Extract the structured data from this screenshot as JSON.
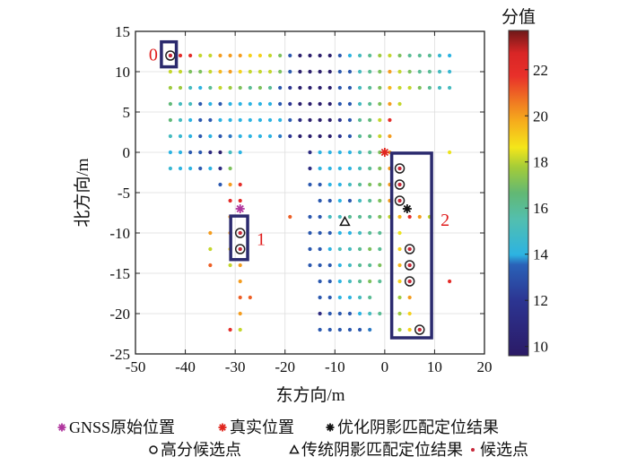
{
  "chart_data": {
    "type": "scatter",
    "xlabel": "东方向/m",
    "ylabel": "北方向/m",
    "xlim": [
      -50,
      20
    ],
    "ylim": [
      -25,
      15
    ],
    "xticks": [
      -50,
      -40,
      -30,
      -20,
      -10,
      0,
      10,
      20
    ],
    "yticks": [
      15,
      10,
      5,
      0,
      -5,
      -10,
      -15,
      -20,
      -25
    ],
    "grid": true,
    "colorbar": {
      "title": "分值",
      "range": [
        9.6,
        23.7
      ],
      "ticks": [
        10,
        12,
        14,
        16,
        18,
        20,
        22
      ],
      "colormap": "jet"
    },
    "candidate_columns_x": [
      -43,
      -41,
      -39,
      -37,
      -35,
      -33,
      -31,
      -29,
      -27,
      -25,
      -23,
      -21,
      -19,
      -17,
      -15,
      -13,
      -11,
      -9,
      -7,
      -5,
      -3,
      -1,
      1,
      3,
      5,
      7,
      9,
      11,
      13
    ],
    "candidate_rows": [
      {
        "y": 12,
        "scores": [
          23,
          22,
          22,
          18,
          18,
          20,
          20,
          20,
          19,
          19,
          18,
          17,
          13,
          10,
          10,
          10,
          10,
          13,
          14,
          15,
          16,
          17.5,
          18,
          17,
          16,
          16,
          16,
          14.5,
          14
        ]
      },
      {
        "y": 10,
        "scores": [
          18,
          18,
          17,
          17,
          18,
          19.5,
          20,
          19,
          18,
          18,
          18,
          17,
          13,
          10,
          10,
          10,
          10,
          13,
          13,
          15,
          16,
          17,
          20,
          18,
          17,
          16,
          16,
          15,
          14.5
        ]
      },
      {
        "y": 8,
        "scores": [
          17.5,
          17.5,
          15,
          14,
          16,
          18,
          17.5,
          17,
          16,
          17,
          16,
          13,
          12,
          10,
          10,
          10,
          10,
          13,
          13,
          15,
          16,
          17,
          19.5,
          18,
          18,
          17,
          16,
          15,
          15
        ]
      },
      {
        "y": 6,
        "scores": [
          16.5,
          15,
          15,
          13,
          14,
          13,
          14,
          14,
          14,
          14,
          14,
          13,
          12,
          10,
          10,
          10,
          10,
          13,
          13,
          15,
          16,
          17,
          20,
          18,
          null,
          null,
          null,
          null,
          null
        ]
      },
      {
        "y": 4,
        "scores": [
          16.5,
          15,
          14,
          13,
          13,
          14,
          14,
          14,
          14,
          14,
          14,
          14,
          13,
          11,
          10,
          10,
          10,
          12,
          13,
          16,
          16.5,
          18,
          22,
          null,
          null,
          null,
          null,
          null,
          null
        ]
      },
      {
        "y": 2,
        "scores": [
          15,
          14.5,
          14,
          13,
          14,
          13,
          13.5,
          14,
          14,
          14,
          14,
          13.5,
          12,
          10,
          10,
          10,
          10,
          12,
          13,
          16,
          16.5,
          18,
          20,
          null,
          null,
          null,
          null,
          null,
          null
        ]
      },
      {
        "y": 0,
        "scores": [
          14,
          14,
          13,
          13,
          11,
          10,
          15,
          14,
          null,
          null,
          null,
          null,
          null,
          null,
          11,
          14,
          14,
          14,
          14,
          15,
          16,
          17,
          20,
          null,
          null,
          null,
          null,
          null,
          18.5
        ]
      },
      {
        "y": -2,
        "scores": [
          14.5,
          14,
          14,
          13,
          14,
          11,
          17,
          null,
          null,
          null,
          null,
          null,
          null,
          null,
          11,
          14,
          14,
          14,
          14,
          15,
          16,
          17,
          20,
          23,
          null,
          null,
          null,
          null,
          null
        ]
      },
      {
        "y": -4,
        "scores": [
          null,
          null,
          null,
          null,
          null,
          13,
          20,
          22,
          null,
          null,
          null,
          null,
          null,
          null,
          13,
          13,
          14,
          14,
          15,
          16,
          17,
          17,
          20,
          23,
          null,
          null,
          null,
          null,
          null
        ]
      },
      {
        "y": -6,
        "scores": [
          null,
          null,
          null,
          null,
          null,
          null,
          22,
          22,
          null,
          null,
          null,
          null,
          null,
          null,
          null,
          13,
          13,
          14,
          13,
          15,
          16,
          17,
          20,
          23,
          null,
          null,
          null,
          null,
          null
        ]
      },
      {
        "y": -8,
        "scores": [
          null,
          null,
          null,
          null,
          null,
          null,
          20,
          null,
          null,
          null,
          null,
          null,
          21,
          null,
          13,
          13,
          15,
          15,
          16,
          16,
          16,
          17,
          18,
          19.5,
          22,
          20,
          18,
          null,
          null
        ]
      },
      {
        "y": -10,
        "scores": [
          null,
          null,
          null,
          null,
          20,
          null,
          20,
          23,
          null,
          null,
          null,
          null,
          null,
          null,
          13,
          13,
          13,
          14,
          14,
          15,
          16,
          16,
          null,
          18.5,
          null,
          null,
          null,
          null,
          null
        ]
      },
      {
        "y": -12,
        "scores": [
          null,
          null,
          null,
          null,
          18,
          null,
          19,
          23,
          null,
          null,
          null,
          null,
          null,
          null,
          13,
          13,
          14,
          15,
          15,
          16,
          17,
          16,
          null,
          19,
          23,
          null,
          null,
          null,
          null
        ]
      },
      {
        "y": -14,
        "scores": [
          null,
          null,
          null,
          null,
          21,
          null,
          18,
          20,
          null,
          null,
          null,
          null,
          null,
          null,
          13,
          13,
          13,
          14,
          15,
          16,
          16,
          17,
          null,
          19.5,
          23,
          null,
          null,
          null,
          null
        ]
      },
      {
        "y": -16,
        "scores": [
          null,
          null,
          null,
          null,
          null,
          null,
          null,
          20,
          null,
          null,
          null,
          null,
          null,
          null,
          null,
          13,
          13,
          14,
          15,
          16,
          17,
          16,
          null,
          19,
          23,
          null,
          null,
          null,
          22
        ]
      },
      {
        "y": -18,
        "scores": [
          null,
          null,
          null,
          null,
          null,
          null,
          null,
          21,
          21,
          null,
          null,
          null,
          null,
          null,
          null,
          13,
          13,
          14,
          14,
          15,
          16,
          null,
          null,
          17.5,
          20,
          null,
          null,
          null,
          null
        ]
      },
      {
        "y": -20,
        "scores": [
          null,
          null,
          null,
          null,
          null,
          null,
          null,
          20,
          null,
          null,
          null,
          null,
          null,
          null,
          null,
          11,
          13,
          13,
          13,
          14,
          15,
          16,
          null,
          17.5,
          19,
          null,
          null,
          null,
          null
        ]
      },
      {
        "y": -22,
        "scores": [
          null,
          null,
          null,
          null,
          null,
          null,
          22,
          18,
          null,
          null,
          null,
          null,
          null,
          null,
          null,
          13,
          13,
          13,
          13,
          13,
          13.5,
          null,
          null,
          17.5,
          19,
          23,
          null,
          null,
          null
        ]
      }
    ],
    "high_score_points": [
      [
        -43,
        12
      ],
      [
        -29,
        -10
      ],
      [
        -29,
        -12
      ],
      [
        3,
        -2
      ],
      [
        3,
        -4
      ],
      [
        3,
        -6
      ],
      [
        5,
        -12
      ],
      [
        5,
        -14
      ],
      [
        5,
        -16
      ],
      [
        7,
        -22
      ]
    ],
    "gnss_position": [
      -29,
      -7
    ],
    "true_position": [
      0,
      0
    ],
    "optimized_result": [
      4.5,
      -7
    ],
    "traditional_result": [
      -8,
      -8.6
    ],
    "cluster_boxes": [
      {
        "label": "0",
        "x": [
          -44.8,
          -41.8
        ],
        "y": [
          10.6,
          13.7
        ]
      },
      {
        "label": "1",
        "x": [
          -30.9,
          -27.5
        ],
        "y": [
          -13.3,
          -7.9
        ]
      },
      {
        "label": "2",
        "x": [
          1.4,
          9.4
        ],
        "y": [
          -23,
          -0.1
        ]
      }
    ],
    "legend": {
      "placement": "bottom",
      "entries": [
        {
          "name": "GNSS原始位置",
          "marker": "asterisk",
          "color": "#b0369e"
        },
        {
          "name": "真实位置",
          "marker": "asterisk",
          "color": "#e0261e"
        },
        {
          "name": "优化阴影匹配定位结果",
          "marker": "asterisk",
          "color": "#111111"
        },
        {
          "name": "高分候选点",
          "marker": "circle",
          "color": "#111111"
        },
        {
          "name": "传统阴影匹配定位结果",
          "marker": "triangle",
          "color": "#111111"
        },
        {
          "name": "候选点",
          "marker": "dot",
          "color": "#c8283a"
        }
      ]
    },
    "colors": {
      "box": "#2b2a6e",
      "annotation": "#e01c1c"
    }
  }
}
